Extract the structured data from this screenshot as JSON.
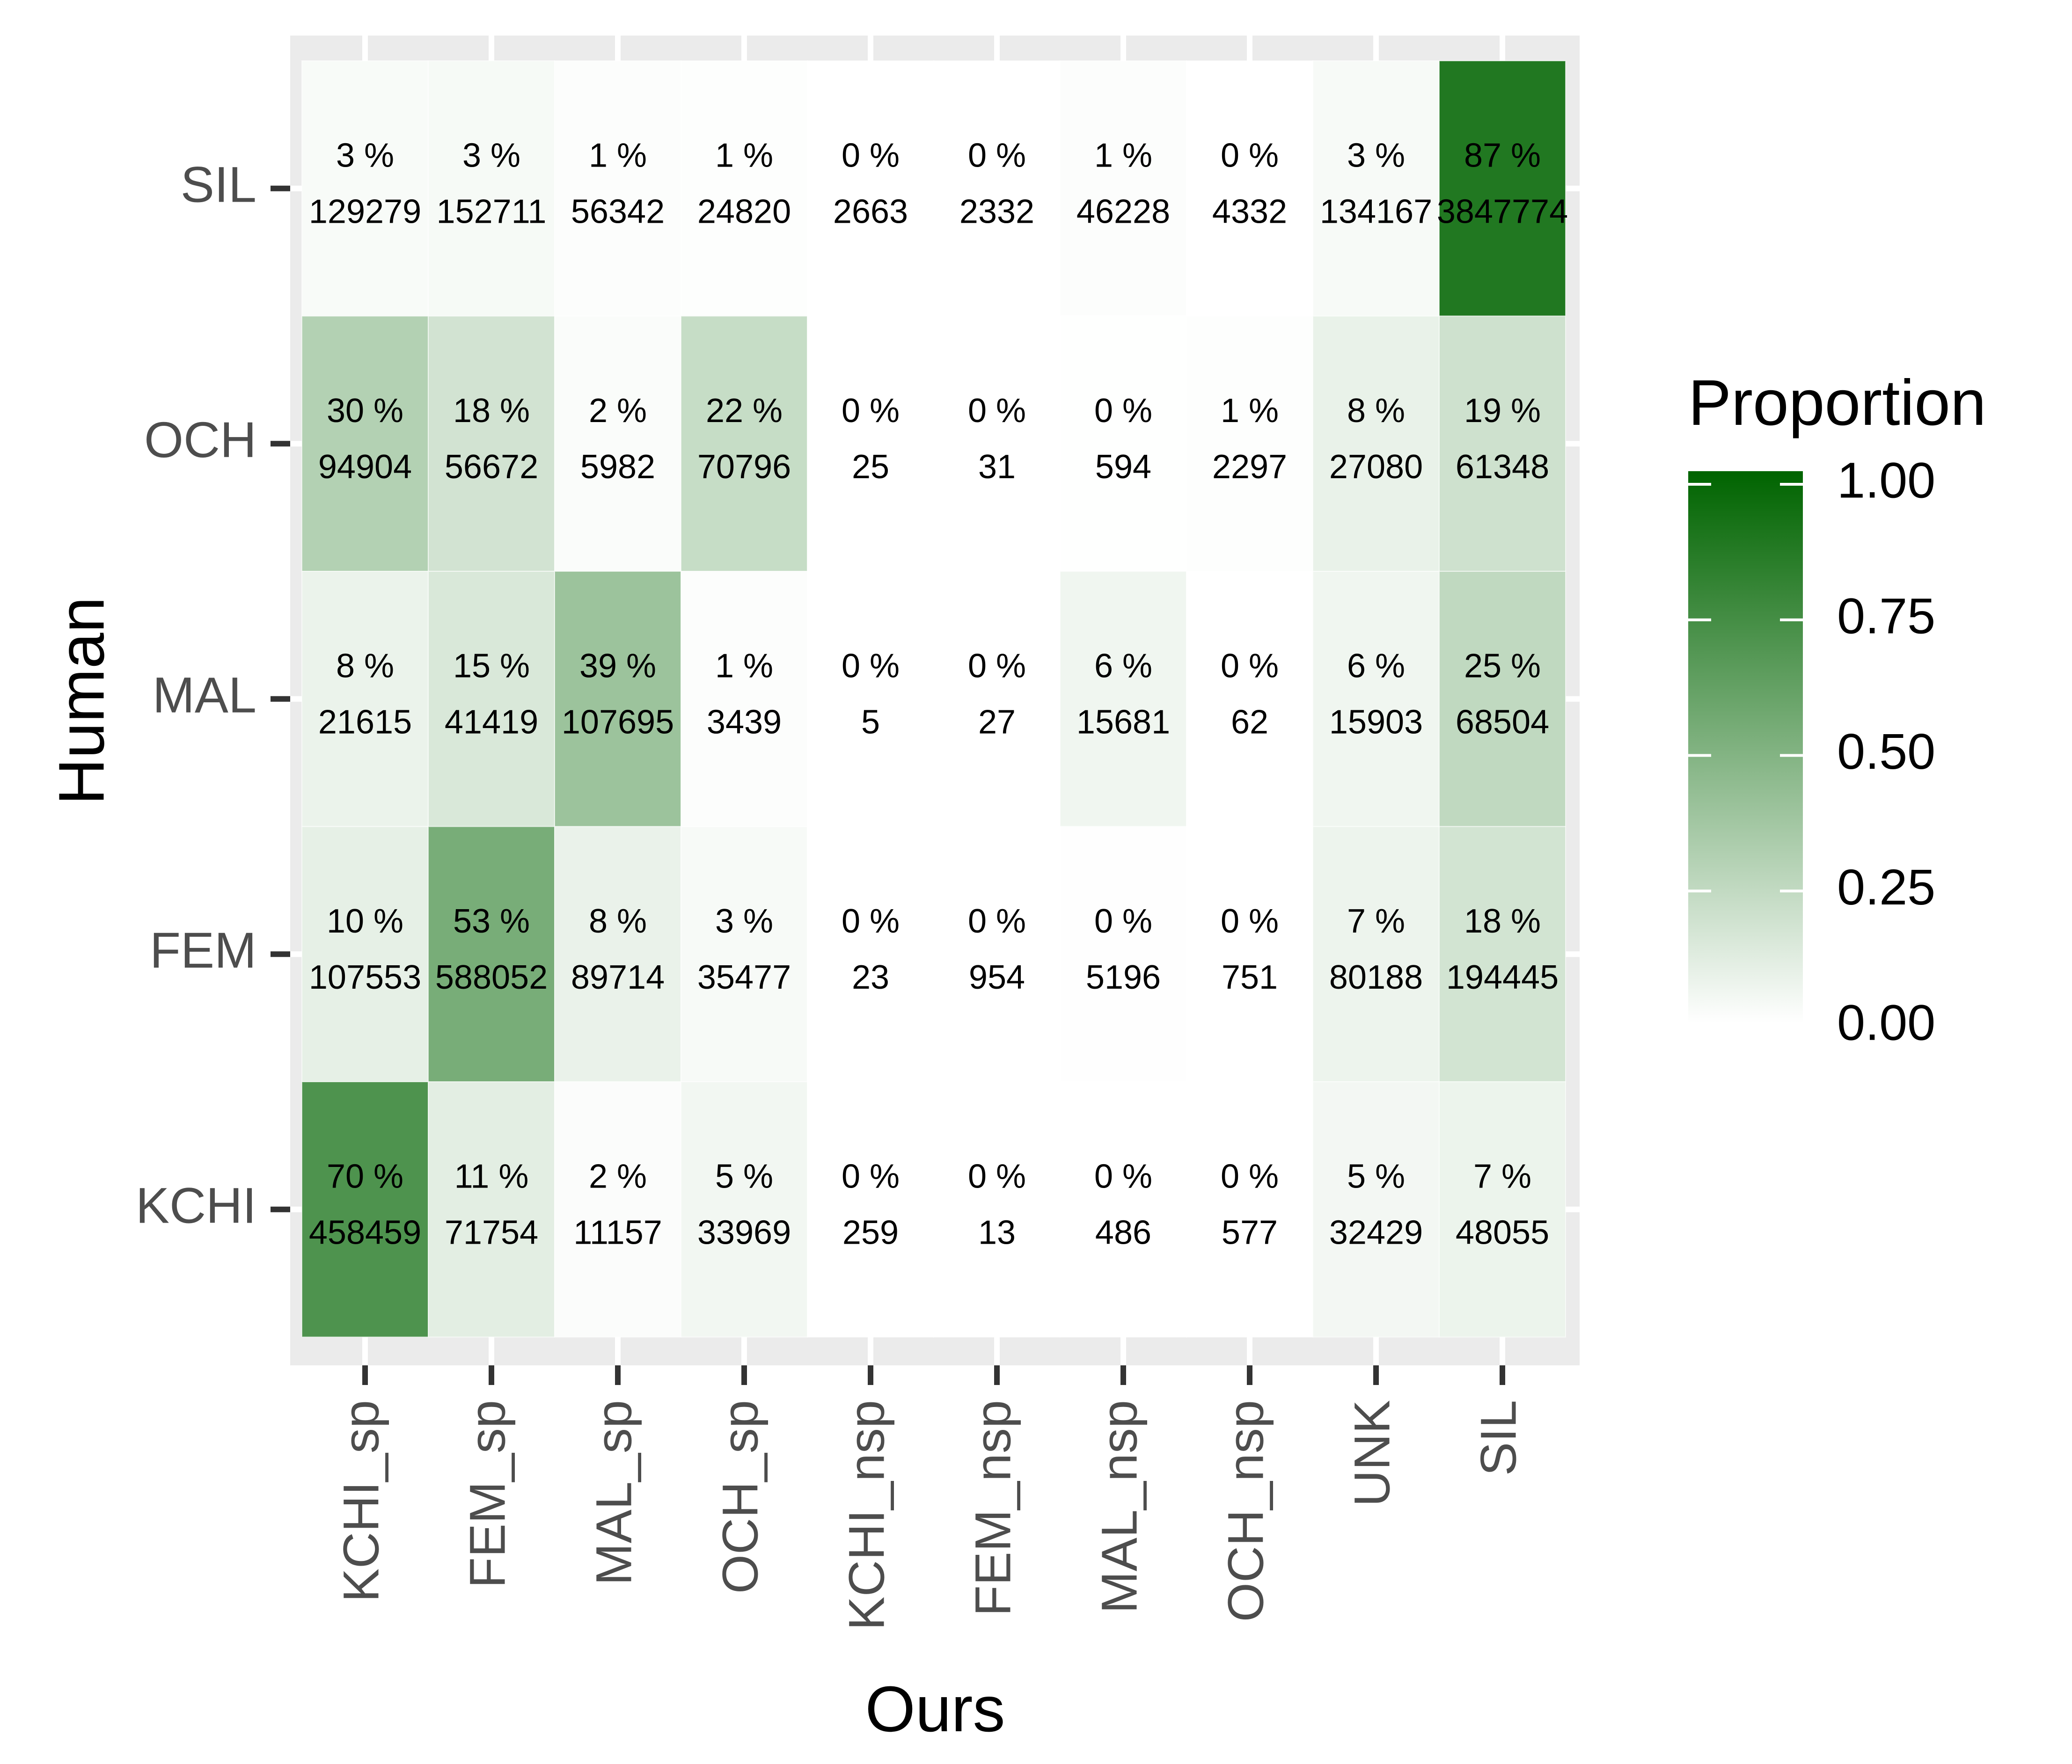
{
  "chart_data": {
    "type": "heatmap",
    "title": "",
    "xlabel": "Ours",
    "ylabel": "Human",
    "x_categories": [
      "KCHI_sp",
      "FEM_sp",
      "MAL_sp",
      "OCH_sp",
      "KCHI_nsp",
      "FEM_nsp",
      "MAL_nsp",
      "OCH_nsp",
      "UNK",
      "SIL"
    ],
    "y_categories": [
      "SIL",
      "OCH",
      "MAL",
      "FEM",
      "KCHI"
    ],
    "percent_labels": [
      [
        "3 %",
        "3 %",
        "1 %",
        "1 %",
        "0 %",
        "0 %",
        "1 %",
        "0 %",
        "3 %",
        "87 %"
      ],
      [
        "30 %",
        "18 %",
        "2 %",
        "22 %",
        "0 %",
        "0 %",
        "0 %",
        "1 %",
        "8 %",
        "19 %"
      ],
      [
        "8 %",
        "15 %",
        "39 %",
        "1 %",
        "0 %",
        "0 %",
        "6 %",
        "0 %",
        "6 %",
        "25 %"
      ],
      [
        "10 %",
        "53 %",
        "8 %",
        "3 %",
        "0 %",
        "0 %",
        "0 %",
        "0 %",
        "7 %",
        "18 %"
      ],
      [
        "70 %",
        "11 %",
        "2 %",
        "5 %",
        "0 %",
        "0 %",
        "0 %",
        "0 %",
        "5 %",
        "7 %"
      ]
    ],
    "counts": [
      [
        129279,
        152711,
        56342,
        24820,
        2663,
        2332,
        46228,
        4332,
        134167,
        3847774
      ],
      [
        94904,
        56672,
        5982,
        70796,
        25,
        31,
        594,
        2297,
        27080,
        61348
      ],
      [
        21615,
        41419,
        107695,
        3439,
        5,
        27,
        15681,
        62,
        15903,
        68504
      ],
      [
        107553,
        588052,
        89714,
        35477,
        23,
        954,
        5196,
        751,
        80188,
        194445
      ],
      [
        458459,
        71754,
        11157,
        33969,
        259,
        13,
        486,
        577,
        32429,
        48055
      ]
    ],
    "proportions": [
      [
        0.029,
        0.034,
        0.013,
        0.006,
        0.001,
        0.001,
        0.01,
        0.001,
        0.03,
        0.87
      ],
      [
        0.298,
        0.178,
        0.019,
        0.222,
        0.0,
        0.0,
        0.002,
        0.007,
        0.085,
        0.192
      ],
      [
        0.078,
        0.15,
        0.39,
        0.012,
        0.0,
        0.0,
        0.057,
        0.0,
        0.058,
        0.248
      ],
      [
        0.097,
        0.531,
        0.081,
        0.032,
        0.0,
        0.001,
        0.005,
        0.001,
        0.072,
        0.175
      ],
      [
        0.695,
        0.109,
        0.017,
        0.051,
        0.0,
        0.0,
        0.001,
        0.001,
        0.049,
        0.073
      ]
    ],
    "legend": {
      "title": "Proportion",
      "placement": "right",
      "ticks": [
        "0.00",
        "0.25",
        "0.50",
        "0.75",
        "1.00"
      ],
      "tick_values": [
        0,
        0.25,
        0.5,
        0.75,
        1.0
      ],
      "range": [
        0,
        1
      ]
    },
    "grid": true,
    "colors": {
      "low": "#ffffff",
      "high": "#006400",
      "panel_background": "#ebebeb",
      "grid": "#ffffff"
    }
  }
}
